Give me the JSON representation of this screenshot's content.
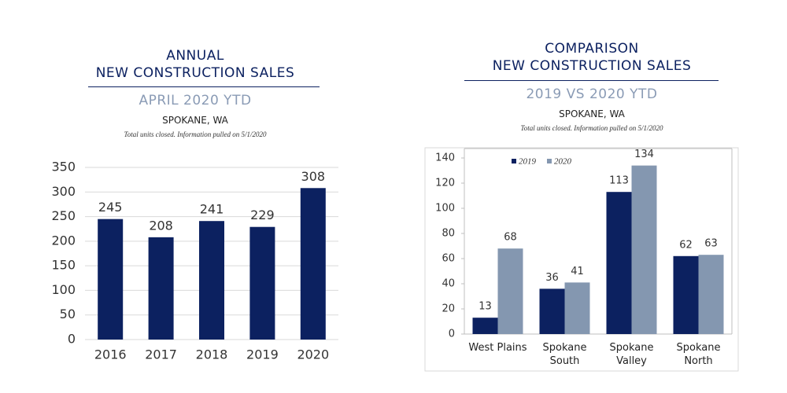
{
  "chart_data": [
    {
      "type": "bar",
      "title": [
        "ANNUAL",
        "NEW CONSTRUCTION SALES"
      ],
      "subtitle": "APRIL 2020 YTD",
      "location": "SPOKANE, WA",
      "note": "Total units closed.  Information pulled on 5/1/2020",
      "categories": [
        "2016",
        "2017",
        "2018",
        "2019",
        "2020"
      ],
      "values": [
        245,
        208,
        241,
        229,
        308
      ],
      "color": "#0c2160",
      "ylim": [
        0,
        350
      ],
      "yticks": [
        0,
        50,
        100,
        150,
        200,
        250,
        300,
        350
      ],
      "grid": true
    },
    {
      "type": "bar",
      "title": [
        "COMPARISON",
        "NEW CONSTRUCTION SALES"
      ],
      "subtitle": "2019 VS 2020 YTD",
      "location": "SPOKANE, WA",
      "note": "Total units closed.  Information pulled on 5/1/2020",
      "categories": [
        "West Plains",
        "Spokane South",
        "Spokane Valley",
        "Spokane North"
      ],
      "series": [
        {
          "name": "2019",
          "color": "#0c2160",
          "values": [
            13,
            36,
            113,
            62
          ]
        },
        {
          "name": "2020",
          "color": "#8497b0",
          "values": [
            68,
            41,
            134,
            63
          ]
        }
      ],
      "ylim": [
        0,
        140
      ],
      "yticks": [
        0,
        20,
        40,
        60,
        80,
        100,
        120,
        140
      ],
      "grid": false,
      "legend": "top-left"
    }
  ]
}
